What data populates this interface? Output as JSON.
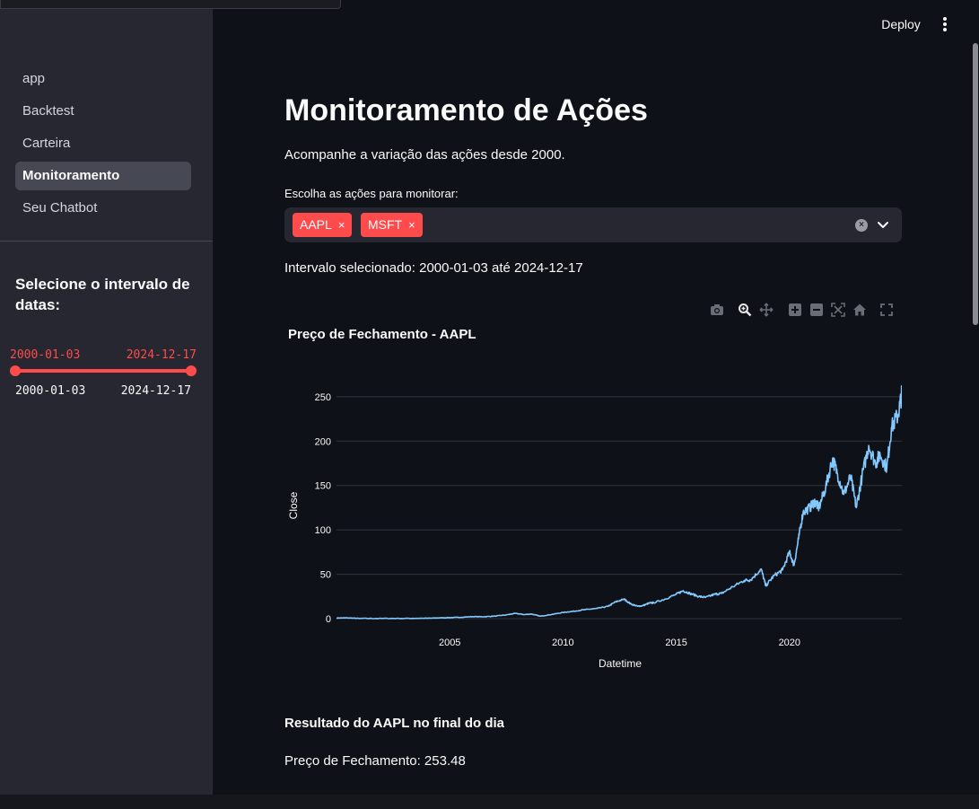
{
  "sidebar": {
    "nav": [
      {
        "label": "app",
        "active": false
      },
      {
        "label": "Backtest",
        "active": false
      },
      {
        "label": "Carteira",
        "active": false
      },
      {
        "label": "Monitoramento",
        "active": true
      },
      {
        "label": "Seu Chatbot",
        "active": false
      }
    ],
    "date_heading": "Selecione o intervalo de datas:",
    "slider": {
      "value_start": "2000-01-03",
      "value_end": "2024-12-17",
      "min_label": "2000-01-03",
      "max_label": "2024-12-17"
    }
  },
  "header": {
    "deploy_label": "Deploy",
    "menu_icon": "kebab-menu-icon"
  },
  "main": {
    "title": "Monitoramento de Ações",
    "subtitle": "Acompanhe a variação das ações desde 2000.",
    "select_label": "Escolha as ações para monitorar:",
    "selected_tags": [
      "AAPL",
      "MSFT"
    ],
    "tag_remove_glyph": "×",
    "interval_text": "Intervalo selecionado: 2000-01-03 até 2024-12-17",
    "modebar_icons": [
      "camera-icon",
      "zoom-icon",
      "pan-icon",
      "zoom-in-icon",
      "zoom-out-icon",
      "autoscale-icon",
      "reset-axes-icon",
      "fullscreen-icon"
    ],
    "result_heading": "Resultado do AAPL no final do dia",
    "close_price_text": "Preço de Fechamento: 253.48"
  },
  "colors": {
    "accent": "#ff4b4b",
    "line": "#83c9ff",
    "background": "#0e1117",
    "sidebar": "#262730"
  },
  "chart_data": {
    "type": "line",
    "title": "Preço de Fechamento - AAPL",
    "xlabel": "Datetime",
    "ylabel": "Close",
    "x_ticks": [
      "2005",
      "2010",
      "2015",
      "2020"
    ],
    "y_ticks": [
      0,
      50,
      100,
      150,
      200,
      250
    ],
    "xlim": [
      2000.0,
      2024.96
    ],
    "ylim": [
      -5,
      262
    ],
    "grid": true,
    "series": [
      {
        "x": [
          2000.0,
          2000.5,
          2001.0,
          2002.0,
          2003.0,
          2004.0,
          2004.5,
          2005.0,
          2005.5,
          2006.0,
          2006.5,
          2007.0,
          2007.5,
          2007.9,
          2008.3,
          2008.6,
          2009.0,
          2009.5,
          2010.0,
          2010.5,
          2011.0,
          2011.5,
          2012.0,
          2012.3,
          2012.7,
          2013.0,
          2013.3,
          2013.5,
          2013.8,
          2014.0,
          2014.5,
          2015.0,
          2015.3,
          2015.6,
          2016.0,
          2016.3,
          2016.7,
          2017.0,
          2017.5,
          2018.0,
          2018.3,
          2018.75,
          2018.95,
          2019.3,
          2019.7,
          2020.0,
          2020.2,
          2020.4,
          2020.6,
          2020.9,
          2021.1,
          2021.3,
          2021.6,
          2021.9,
          2022.1,
          2022.4,
          2022.7,
          2022.95,
          2023.2,
          2023.5,
          2023.8,
          2024.0,
          2024.3,
          2024.5,
          2024.8,
          2024.96
        ],
        "y": [
          0.8,
          0.9,
          0.3,
          0.3,
          0.3,
          0.5,
          0.9,
          1.2,
          1.6,
          2.3,
          2.2,
          2.9,
          4.3,
          6.0,
          4.6,
          5.3,
          2.8,
          4.8,
          7.0,
          8.5,
          10.3,
          11.5,
          14.0,
          18.7,
          22.0,
          16.5,
          14.0,
          14.5,
          17.5,
          18.0,
          22.0,
          27.5,
          31.5,
          28.5,
          25.0,
          24.0,
          27.5,
          28.5,
          36.0,
          43.0,
          44.0,
          56.0,
          37.0,
          48.0,
          55.0,
          75.0,
          60.0,
          90.0,
          120.0,
          125.0,
          132.0,
          125.0,
          148.0,
          180.0,
          165.0,
          140.0,
          160.0,
          125.0,
          160.0,
          195.0,
          175.0,
          185.0,
          170.0,
          215.0,
          230.0,
          253.48
        ]
      }
    ]
  }
}
